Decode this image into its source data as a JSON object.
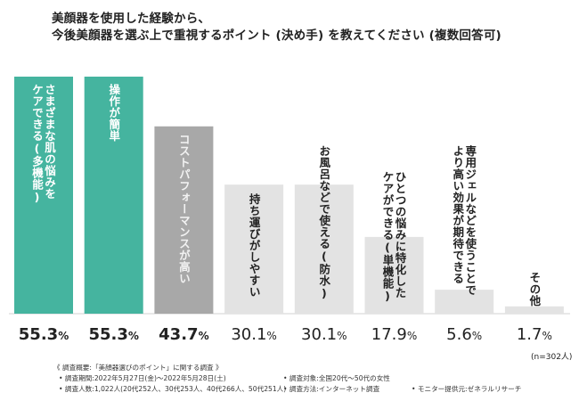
{
  "title": {
    "line1": "美顔器を使用した経験から、",
    "line2": "今後美顔器を選ぶ上で重視するポイント (決め手) を教えてください (複数回答可)"
  },
  "colors": {
    "teal": "#45b49f",
    "grey": "#a8a8a8",
    "light": "#e3e3e3"
  },
  "chart_data": {
    "type": "bar",
    "categories": [
      "さまざまな肌の悩みをケアできる(多機能)",
      "操作が簡単",
      "コストパフォーマンスが高い",
      "持ち運びがしやすい",
      "お風呂などで使える(防水)",
      "ひとつの悩みに特化したケアができる(単機能)",
      "専用ジェルなどを使うことでより高い効果が期待できる",
      "その他"
    ],
    "labels_display": [
      [
        "さまざまな肌の悩みを",
        "ケアできる(多機能)"
      ],
      [
        "操作が簡単"
      ],
      [
        "コストパフォーマンスが高い"
      ],
      [
        "持ち運びがしやすい"
      ],
      [
        "お風呂などで使える(防水)"
      ],
      [
        "ひとつの悩みに特化した",
        "ケアができる(単機能)"
      ],
      [
        "専用ジェルなどを使うことで",
        "より高い効果が期待できる"
      ],
      [
        "その他"
      ]
    ],
    "values": [
      55.3,
      55.3,
      43.7,
      30.1,
      30.1,
      17.9,
      5.6,
      1.7
    ],
    "value_labels": [
      "55.3",
      "55.3",
      "43.7",
      "30.1",
      "30.1",
      "17.9",
      "5.6",
      "1.7"
    ],
    "unit": "%",
    "bar_colors": [
      "#45b49f",
      "#45b49f",
      "#a8a8a8",
      "#e3e3e3",
      "#e3e3e3",
      "#e3e3e3",
      "#e3e3e3",
      "#e3e3e3"
    ],
    "ylim": [
      0,
      55.3
    ],
    "n_note": "(n=302人)"
  },
  "footer": {
    "survey_summary": "《 調査概要:「美顔器選びのポイント」に関する調査 》",
    "period": "• 調査期間:2022年5月27日(金)〜2022年5月28日(土)",
    "respondents": "• 調査人数:1,022人(20代252人、30代253人、40代266人、50代251人)",
    "target": "• 調査対象:全国20代〜50代の女性",
    "method": "• 調査方法:インターネット調査",
    "provider": "• モニター提供元:ゼネラルリサーチ"
  }
}
